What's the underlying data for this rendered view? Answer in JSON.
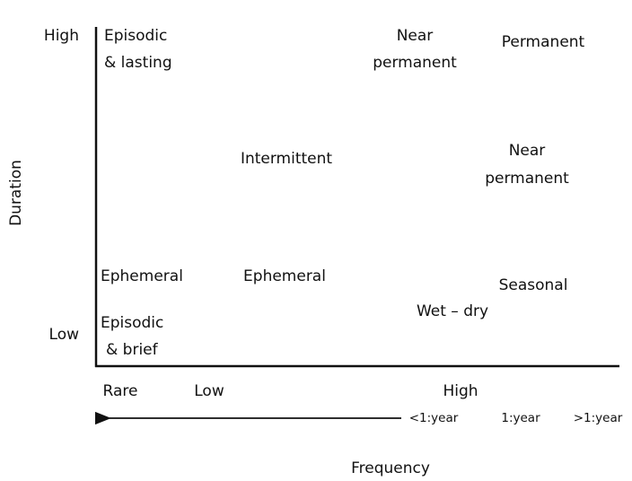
{
  "y_axis": {
    "label": "Duration",
    "high": "High",
    "low": "Low"
  },
  "x_axis": {
    "label": "Frequency",
    "rare": "Rare",
    "low": "Low",
    "high": "High",
    "ratios": [
      "<1:year",
      "1:year",
      ">1:year"
    ]
  },
  "regions": [
    {
      "lines": [
        "Episodic",
        "& lasting"
      ]
    },
    {
      "lines": [
        "Near",
        "permanent"
      ]
    },
    {
      "lines": [
        "Permanent"
      ]
    },
    {
      "lines": [
        "Intermittent"
      ]
    },
    {
      "lines": [
        "Near",
        "permanent"
      ]
    },
    {
      "lines": [
        "Ephemeral"
      ]
    },
    {
      "lines": [
        "Ephemeral"
      ]
    },
    {
      "lines": [
        "Seasonal"
      ]
    },
    {
      "lines": [
        "Wet – dry"
      ]
    },
    {
      "lines": [
        "Episodic",
        "& brief"
      ]
    }
  ]
}
